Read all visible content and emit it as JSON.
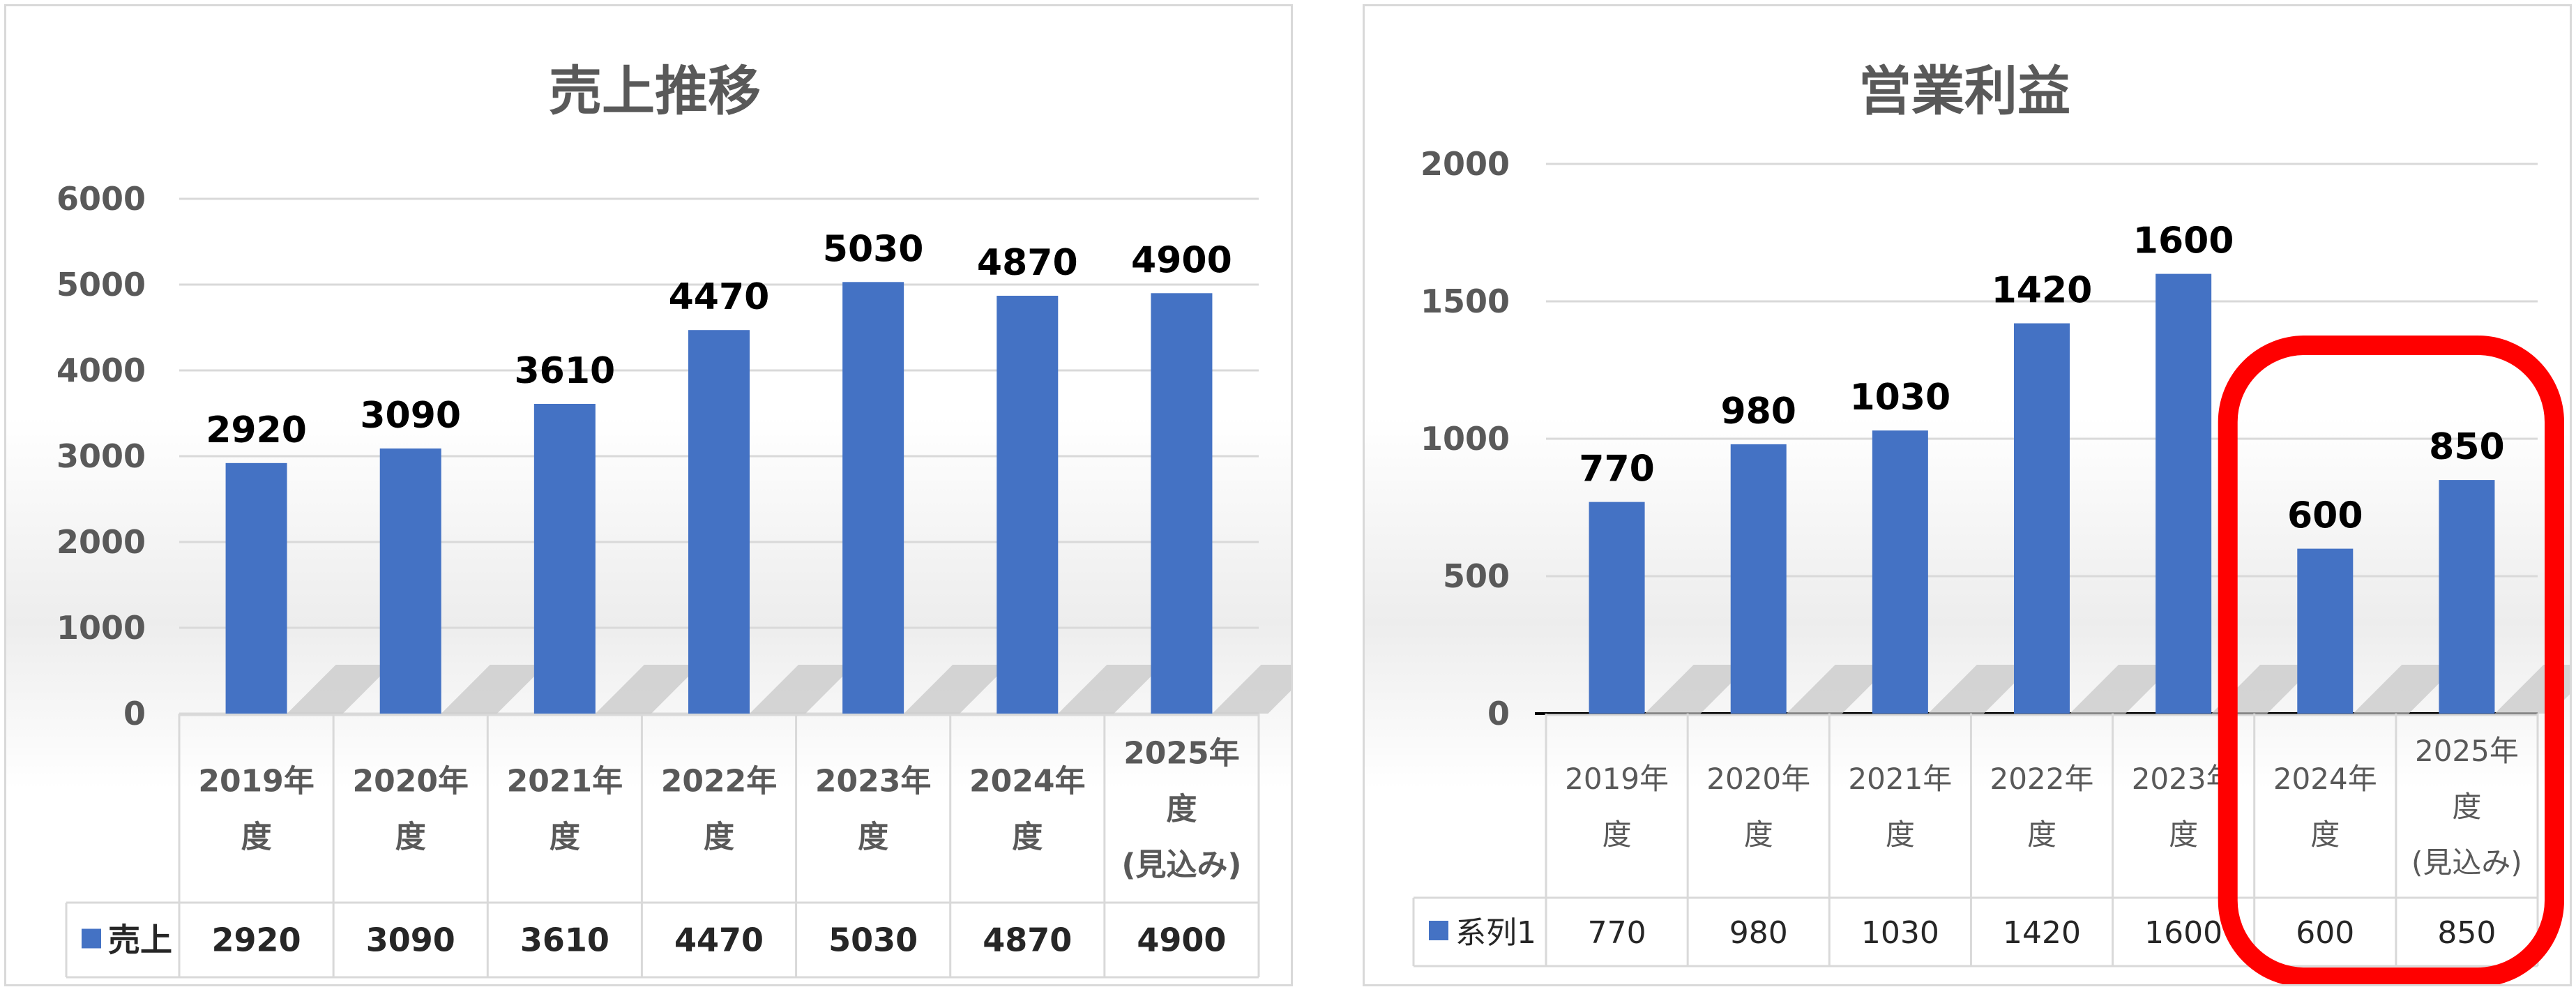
{
  "colors": {
    "bar": "#4472c4",
    "highlight": "#ff0000",
    "text": "#595959"
  },
  "chart_data": [
    {
      "type": "bar",
      "title": "売上推移",
      "categories": [
        [
          "2019年",
          "度"
        ],
        [
          "2020年",
          "度"
        ],
        [
          "2021年",
          "度"
        ],
        [
          "2022年",
          "度"
        ],
        [
          "2023年",
          "度"
        ],
        [
          "2024年",
          "度"
        ],
        [
          "2025年",
          "度",
          "(見込み)"
        ]
      ],
      "series": [
        {
          "name": "売上",
          "values": [
            2920,
            3090,
            3610,
            4470,
            5030,
            4870,
            4900
          ]
        }
      ],
      "ylim": [
        0,
        6000
      ],
      "yticks": [
        0,
        1000,
        2000,
        3000,
        4000,
        5000,
        6000
      ],
      "grid": true,
      "data_labels": true,
      "data_table": true
    },
    {
      "type": "bar",
      "title": "営業利益",
      "categories": [
        [
          "2019年",
          "度"
        ],
        [
          "2020年",
          "度"
        ],
        [
          "2021年",
          "度"
        ],
        [
          "2022年",
          "度"
        ],
        [
          "2023年",
          "度"
        ],
        [
          "2024年",
          "度"
        ],
        [
          "2025年",
          "度",
          "(見込み)"
        ]
      ],
      "series": [
        {
          "name": "系列1",
          "values": [
            770,
            980,
            1030,
            1420,
            1600,
            600,
            850
          ]
        }
      ],
      "ylim": [
        0,
        2000
      ],
      "yticks": [
        0,
        500,
        1000,
        1500,
        2000
      ],
      "grid": true,
      "data_labels": true,
      "data_table": true,
      "highlighted_categories": [
        5,
        6
      ]
    }
  ]
}
